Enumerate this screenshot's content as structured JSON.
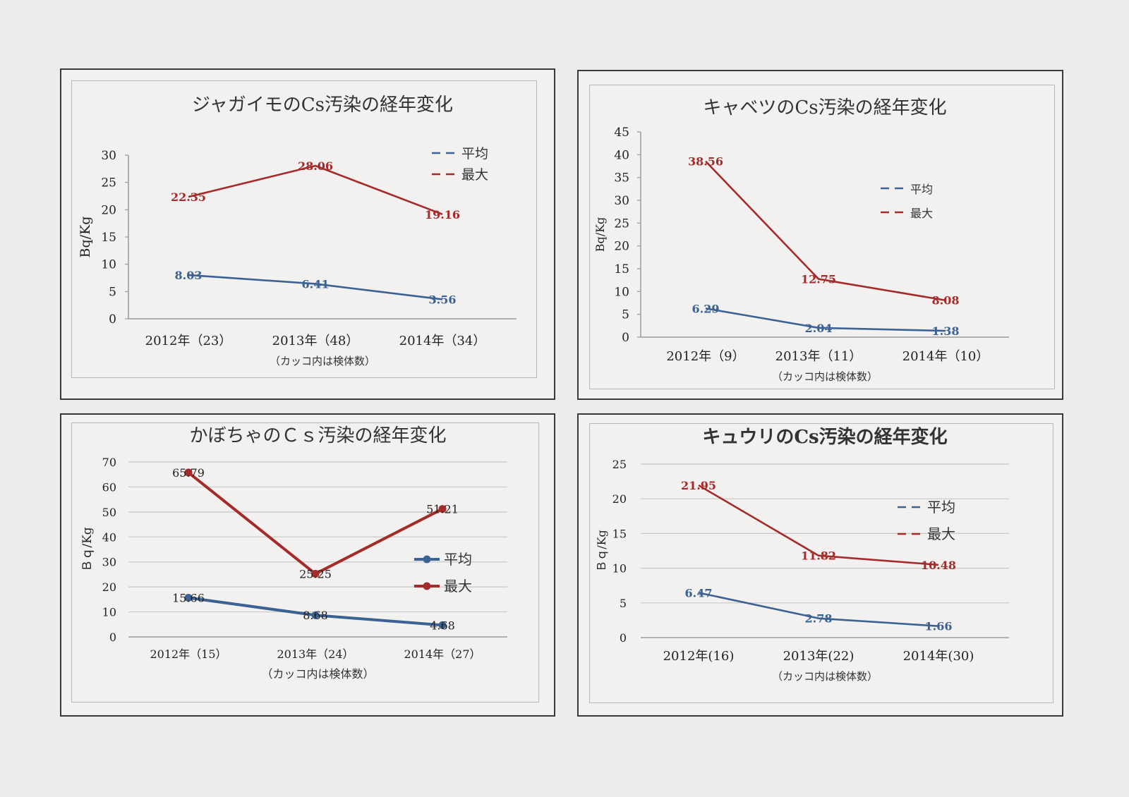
{
  "page": {
    "background": "#edecea"
  },
  "colors": {
    "avg": "#3c6293",
    "max": "#a52a2a",
    "axis_text": "#222222",
    "grid": "#c8c8c8"
  },
  "chart_data": [
    {
      "id": "potato",
      "type": "line",
      "title": "ジャガイモのCs汚染の経年変化",
      "ylabel": "Bq/Kg",
      "xlabel": "",
      "note": "（カッコ内は検体数）",
      "categories": [
        "2012年（23）",
        "2013年（48）",
        "2014年（34）"
      ],
      "ylim": [
        0,
        30
      ],
      "yticks": [
        0,
        5,
        10,
        15,
        20,
        25,
        30
      ],
      "grid": false,
      "markers": false,
      "legend_position": "top-right",
      "series": [
        {
          "name": "平均",
          "values": [
            8.03,
            6.41,
            3.56
          ],
          "labels": [
            "8.03",
            "6.41",
            "3.56"
          ],
          "color": "#3c6293"
        },
        {
          "name": "最大",
          "values": [
            22.35,
            28.06,
            19.16
          ],
          "labels": [
            "22.35",
            "28.06",
            "19.16"
          ],
          "color": "#a52a2a"
        }
      ]
    },
    {
      "id": "cabbage",
      "type": "line",
      "title": "キャベツのCs汚染の経年変化",
      "ylabel": "Bq/Kg",
      "xlabel": "",
      "note": "（カッコ内は検体数）",
      "categories": [
        "2012年（9）",
        "2013年（11）",
        "2014年（10）"
      ],
      "ylim": [
        0,
        45
      ],
      "yticks": [
        0,
        5,
        10,
        15,
        20,
        25,
        30,
        35,
        40,
        45
      ],
      "grid": false,
      "markers": false,
      "legend_position": "right",
      "series": [
        {
          "name": "平均",
          "values": [
            6.29,
            2.04,
            1.38
          ],
          "labels": [
            "6.29",
            "2.04",
            "1.38"
          ],
          "color": "#3c6293"
        },
        {
          "name": "最大",
          "values": [
            38.56,
            12.75,
            8.08
          ],
          "labels": [
            "38.56",
            "12.75",
            "8.08"
          ],
          "color": "#a52a2a"
        }
      ]
    },
    {
      "id": "pumpkin",
      "type": "line",
      "title": "かぼちゃのＣｓ汚染の経年変化",
      "ylabel": "Ｂｑ/Kg",
      "xlabel": "",
      "note": "（カッコ内は検体数）",
      "categories": [
        "2012年（15）",
        "2013年（24）",
        "2014年（27）"
      ],
      "ylim": [
        0,
        70
      ],
      "yticks": [
        0,
        10,
        20,
        30,
        40,
        50,
        60,
        70
      ],
      "grid": true,
      "markers": true,
      "legend_position": "right",
      "series": [
        {
          "name": "平均",
          "values": [
            15.66,
            8.68,
            4.68
          ],
          "labels": [
            "15.66",
            "8.68",
            "4.68"
          ],
          "color": "#3c6293"
        },
        {
          "name": "最大",
          "values": [
            65.79,
            25.25,
            51.21
          ],
          "labels": [
            "65.79",
            "25.25",
            "51.21"
          ],
          "color": "#a52a2a"
        }
      ]
    },
    {
      "id": "cucumber",
      "type": "line",
      "title": "キュウリのCs汚染の経年変化",
      "ylabel": "Ｂｑ/Kg",
      "xlabel": "",
      "note": "（カッコ内は検体数）",
      "categories": [
        "2012年(16)",
        "2013年(22)",
        "2014年(30)"
      ],
      "ylim": [
        0,
        25
      ],
      "yticks": [
        0,
        5,
        10,
        15,
        20,
        25
      ],
      "grid": true,
      "markers": false,
      "legend_position": "right",
      "series": [
        {
          "name": "平均",
          "values": [
            6.47,
            2.78,
            1.66
          ],
          "labels": [
            "6.47",
            "2.78",
            "1.66"
          ],
          "color": "#3c6293"
        },
        {
          "name": "最大",
          "values": [
            21.95,
            11.82,
            10.48
          ],
          "labels": [
            "21.95",
            "11.82",
            "10.48"
          ],
          "color": "#a52a2a"
        }
      ]
    }
  ]
}
